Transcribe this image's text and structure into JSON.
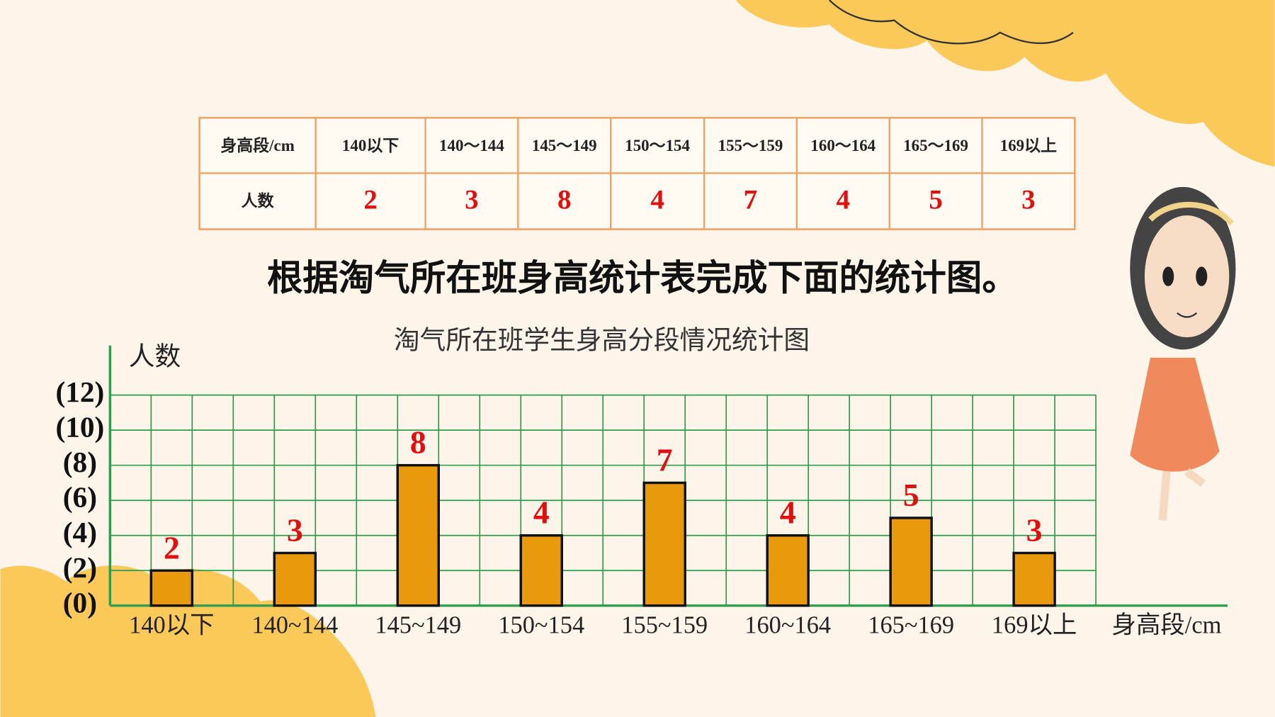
{
  "table": {
    "header": [
      "身高段/cm",
      "140以下",
      "140～144",
      "145～149",
      "150～154",
      "155～159",
      "160～164",
      "165～169",
      "169以上"
    ],
    "rows": [
      [
        "人数",
        2,
        3,
        8,
        4,
        7,
        4,
        5,
        3
      ]
    ]
  },
  "instruction": "根据淘气所在班身高统计表完成下面的统计图。",
  "chart_data": {
    "type": "bar",
    "title": "淘气所在班学生身高分段情况统计图",
    "x_label": "身高段/cm",
    "y_label": "人数",
    "categories": [
      "140以下",
      "140~144",
      "145~149",
      "150~154",
      "155~159",
      "160~164",
      "165~169",
      "169以上"
    ],
    "values": [
      2,
      3,
      8,
      4,
      7,
      4,
      5,
      3
    ],
    "color": "#e89a0c",
    "ylim": [
      0,
      12
    ],
    "yticks": [
      {
        "value": 0,
        "label": "(0)"
      },
      {
        "value": 2,
        "label": "(2)"
      },
      {
        "value": 4,
        "label": "(4)"
      },
      {
        "value": 6,
        "label": "(6)"
      },
      {
        "value": 8,
        "label": "(8)"
      },
      {
        "value": 10,
        "label": "(10)"
      },
      {
        "value": 12,
        "label": "(12)"
      }
    ],
    "grid": true
  }
}
